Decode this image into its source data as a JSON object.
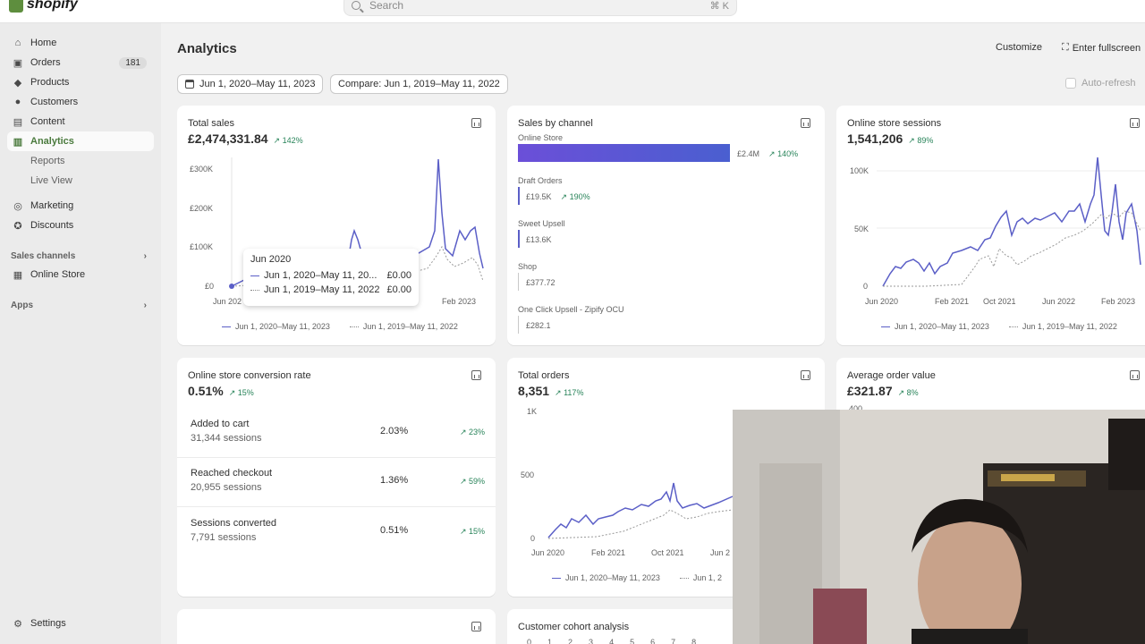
{
  "topbar": {
    "logo_text": "shopify",
    "search_placeholder": "Search",
    "search_shortcut": "⌘ K"
  },
  "sidebar": {
    "items": [
      {
        "label": "Home",
        "icon": "home-icon"
      },
      {
        "label": "Orders",
        "icon": "orders-icon",
        "badge": "181"
      },
      {
        "label": "Products",
        "icon": "tag-icon"
      },
      {
        "label": "Customers",
        "icon": "person-icon"
      },
      {
        "label": "Content",
        "icon": "content-icon"
      },
      {
        "label": "Analytics",
        "icon": "analytics-icon"
      }
    ],
    "subitems": [
      "Reports",
      "Live View"
    ],
    "items2": [
      {
        "label": "Marketing",
        "icon": "target-icon"
      },
      {
        "label": "Discounts",
        "icon": "discount-icon"
      }
    ],
    "sales_channels_label": "Sales channels",
    "online_store_label": "Online Store",
    "apps_label": "Apps",
    "settings_label": "Settings"
  },
  "header": {
    "title": "Analytics",
    "customize": "Customize",
    "fullscreen": "Enter fullscreen",
    "date_range": "Jun 1, 2020–May 11, 2023",
    "compare": "Compare: Jun 1, 2019–May 11, 2022",
    "autorefresh": "Auto-refresh"
  },
  "total_sales": {
    "title": "Total sales",
    "value": "£2,474,331.84",
    "change": "142%",
    "y_ticks": [
      "£300K",
      "£200K",
      "£100K",
      "£0"
    ],
    "x_ticks": [
      "Jun 202",
      "Feb 2023"
    ],
    "legend": [
      "Jun 1, 2020–May 11, 2023",
      "Jun 1, 2019–May 11, 2022"
    ],
    "tooltip": {
      "title": "Jun 2020",
      "row1_label": "Jun 1, 2020–May 11, 20...",
      "row1_value": "£0.00",
      "row2_label": "Jun 1, 2019–May 11, 2022",
      "row2_value": "£0.00"
    }
  },
  "sales_by_channel": {
    "title": "Sales by channel",
    "channels": [
      {
        "name": "Online Store",
        "value": "£2.4M",
        "change": "140%",
        "fraction": 1.0
      },
      {
        "name": "Draft Orders",
        "value": "£19.5K",
        "change": "190%",
        "fraction": 0.008
      },
      {
        "name": "Sweet Upsell",
        "value": "£13.6K",
        "change": "",
        "fraction": 0.006
      },
      {
        "name": "Shop",
        "value": "£377.72",
        "change": "",
        "fraction": 0.0002
      },
      {
        "name": "One Click Upsell - Zipify OCU",
        "value": "£282.1",
        "change": "",
        "fraction": 0.0001
      }
    ]
  },
  "sessions": {
    "title": "Online store sessions",
    "value": "1,541,206",
    "change": "89%",
    "y_ticks": [
      "100K",
      "50K",
      "0"
    ],
    "x_ticks": [
      "Jun 2020",
      "Feb 2021",
      "Oct 2021",
      "Jun 2022",
      "Feb 2023"
    ],
    "legend": [
      "Jun 1, 2020–May 11, 2023",
      "Jun 1, 2019–May 11, 2022"
    ]
  },
  "conversion": {
    "title": "Online store conversion rate",
    "value": "0.51%",
    "change": "15%",
    "rows": [
      {
        "label": "Added to cart",
        "sessions": "31,344 sessions",
        "pct": "2.03%",
        "change": "23%"
      },
      {
        "label": "Reached checkout",
        "sessions": "20,955 sessions",
        "pct": "1.36%",
        "change": "59%"
      },
      {
        "label": "Sessions converted",
        "sessions": "7,791 sessions",
        "pct": "0.51%",
        "change": "15%"
      }
    ]
  },
  "total_orders": {
    "title": "Total orders",
    "value": "8,351",
    "change": "117%",
    "y_ticks": [
      "1K",
      "500",
      "0"
    ],
    "x_ticks": [
      "Jun 2020",
      "Feb 2021",
      "Oct 2021",
      "Jun 2"
    ],
    "legend": [
      "Jun 1, 2020–May 11, 2023",
      "Jun 1, 2"
    ]
  },
  "aov": {
    "title": "Average order value",
    "value": "£321.87",
    "change": "8%",
    "y_tick": "400"
  },
  "cohort": {
    "title": "Customer cohort analysis",
    "cols": [
      "0",
      "1",
      "2",
      "3",
      "4",
      "5",
      "6",
      "7",
      "8"
    ]
  },
  "colors": {
    "accent": "#5b5fc7",
    "green": "#29845a",
    "active_nav": "#4a7a3d"
  }
}
